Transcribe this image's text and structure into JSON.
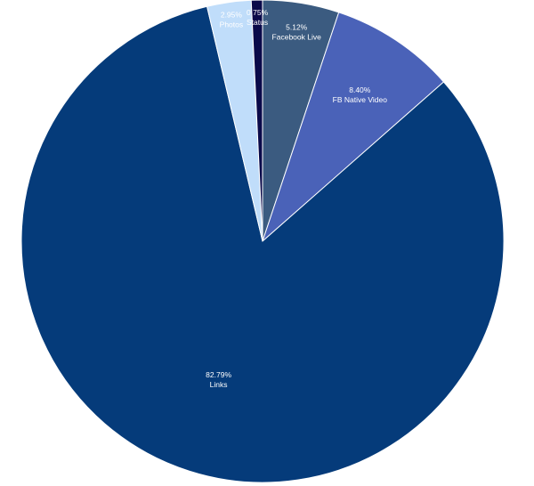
{
  "chart_data": {
    "type": "pie",
    "title": "",
    "start_angle_deg": 0,
    "direction": "clockwise",
    "slices": [
      {
        "name": "Facebook Live",
        "value": 5.12,
        "label_value": "5.12%",
        "color": "#3b5b80"
      },
      {
        "name": "FB Native Video",
        "value": 8.4,
        "label_value": "8.40%",
        "color": "#4a62b8"
      },
      {
        "name": "Links",
        "value": 82.79,
        "label_value": "82.79%",
        "color": "#053b7a"
      },
      {
        "name": "Photos",
        "value": 2.95,
        "label_value": "2.95%",
        "color": "#c0ddfa"
      },
      {
        "name": "Status",
        "value": 0.75,
        "label_value": "0.75%",
        "color": "#0a0a4a"
      }
    ],
    "legend": "none"
  }
}
